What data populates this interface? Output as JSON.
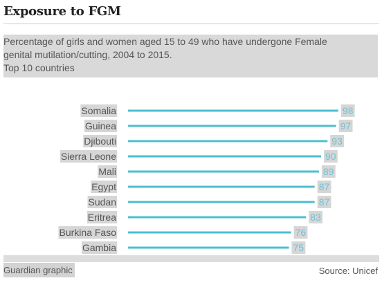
{
  "title": "Exposure to FGM",
  "subtitle_lines": [
    "Percentage of girls and women aged 15 to 49 who have undergone Female",
    "genital mutilation/cutting, 2004 to 2015.",
    "Top 10 countries"
  ],
  "footer": {
    "credit": "Guardian graphic",
    "source": "Source: Unicef"
  },
  "colors": {
    "bar": "#4bbfcf",
    "value_text": "#6ec3d6",
    "label_bg": "#d6d6d6"
  },
  "chart_data": {
    "type": "bar",
    "orientation": "horizontal",
    "categories": [
      "Somalia",
      "Guinea",
      "Djibouti",
      "Sierra Leone",
      "Mali",
      "Egypt",
      "Sudan",
      "Eritrea",
      "Burkina Faso",
      "Gambia"
    ],
    "values": [
      98,
      97,
      93,
      90,
      89,
      87,
      87,
      83,
      76,
      75
    ],
    "xlim": [
      0,
      100
    ],
    "grid": false,
    "legend": "none"
  }
}
